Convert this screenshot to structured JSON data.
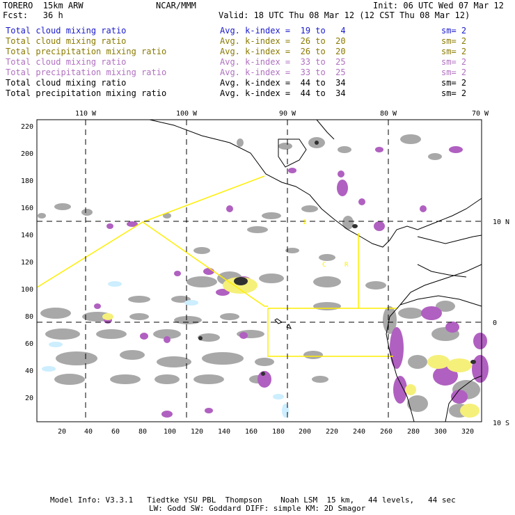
{
  "header": {
    "model": "TORERO  15km ARW",
    "center": "NCAR/MMM",
    "init": "Init: 06 UTC Wed 07 Mar 12",
    "fcst": "Fcst:   36 h",
    "valid": "Valid: 18 UTC Thu 08 Mar 12 (12 CST Thu 08 Mar 12)"
  },
  "legend": [
    {
      "field": "Total cloud mixing ratio",
      "kidx": "Avg. k-index =  19 to   4",
      "sm": "sm= 2",
      "color": "#1a1acc"
    },
    {
      "field": "Total cloud mixing ratio",
      "kidx": "Avg. k-index =  26 to  20",
      "sm": "sm= 2",
      "color": "#8a7a00"
    },
    {
      "field": "Total precipitation mixing ratio",
      "kidx": "Avg. k-index =  26 to  20",
      "sm": "sm= 2",
      "color": "#8a7a00"
    },
    {
      "field": "Total cloud mixing ratio",
      "kidx": "Avg. k-index =  33 to  25",
      "sm": "sm= 2",
      "color": "#b070c0"
    },
    {
      "field": "Total precipitation mixing ratio",
      "kidx": "Avg. k-index =  33 to  25",
      "sm": "sm= 2",
      "color": "#b070c0"
    },
    {
      "field": "Total cloud mixing ratio",
      "kidx": "Avg. k-index =  44 to  34",
      "sm": "sm= 2",
      "color": "#000000"
    },
    {
      "field": "Total precipitation mixing ratio",
      "kidx": "Avg. k-index =  44 to  34",
      "sm": "sm= 2",
      "color": "#000000"
    }
  ],
  "map": {
    "lon_labels": [
      "110 W",
      "100 W",
      "90 W",
      "80 W",
      "70 W"
    ],
    "lat_labels": [
      "10 N",
      "0",
      "10 S"
    ],
    "x_ticks": [
      "20",
      "40",
      "60",
      "80",
      "100",
      "120",
      "140",
      "160",
      "180",
      "200",
      "220",
      "240",
      "260",
      "280",
      "300",
      "320"
    ],
    "y_ticks": [
      "220",
      "200",
      "180",
      "160",
      "140",
      "120",
      "100",
      "80",
      "60",
      "40",
      "20"
    ],
    "annotations": [
      "I",
      "C",
      "R"
    ]
  },
  "footer": {
    "line1": "Model Info: V3.3.1   Tiedtke YSU PBL  Thompson    Noah LSM  15 km,   44 levels,   44 sec",
    "line2": "LW: Godd SW: Goddard DIFF: simple KM: 2D Smagor"
  }
}
